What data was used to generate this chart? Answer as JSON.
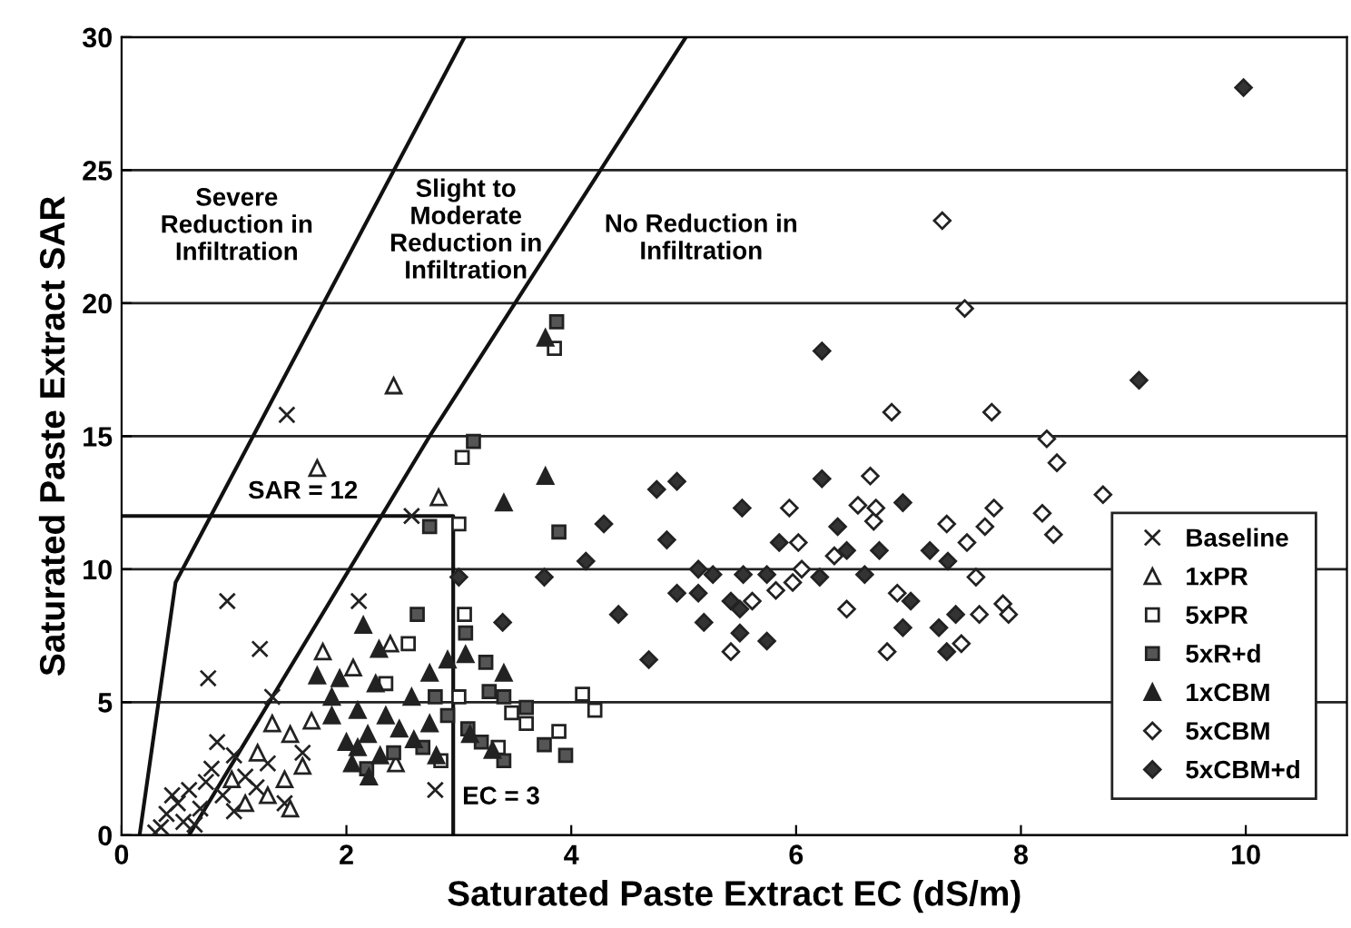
{
  "chart_data": {
    "type": "scatter",
    "xlabel": "Saturated Paste Extract EC (dS/m)",
    "ylabel": "Saturated Paste Extract SAR",
    "xlim": [
      0,
      10.9
    ],
    "ylim": [
      0,
      30
    ],
    "xticks": [
      0,
      2,
      4,
      6,
      8,
      10
    ],
    "yticks": [
      0,
      5,
      10,
      15,
      20,
      25,
      30
    ],
    "grid": "y",
    "legend": "bottom right",
    "annotations": [
      "Severe\nReduction in\nInfiltration",
      "Slight to\nModerate\nReduction in\nInfiltration",
      "No Reduction in\nInfiltration",
      "SAR = 12",
      "EC = 3"
    ],
    "series": [
      {
        "type": "line",
        "color": "#111111",
        "marker": "none",
        "x": [
          0.16,
          0.48,
          3.05
        ],
        "values": [
          0,
          9.5,
          30
        ]
      },
      {
        "type": "line",
        "color": "#111111",
        "marker": "none",
        "x": [
          0.6,
          2.74,
          5.02
        ],
        "values": [
          0,
          15,
          30
        ]
      },
      {
        "type": "line",
        "color": "#111111",
        "marker": "none",
        "x": [
          0,
          2.95,
          2.95
        ],
        "values": [
          12,
          12,
          0
        ]
      },
      {
        "name": "Baseline",
        "color": "#222222",
        "marker": "cross",
        "x": [
          1.47,
          0.94,
          2.11,
          1.23,
          0.77,
          1.34,
          1.45,
          2.79,
          2.58,
          1.61,
          0.35,
          0.4,
          0.5,
          0.55,
          0.6,
          0.7,
          0.75,
          0.8,
          0.9,
          1.0,
          1.1,
          1.2,
          0.45,
          0.65,
          0.85,
          1.0,
          0.3,
          1.3
        ],
        "values": [
          15.8,
          8.8,
          8.8,
          7.0,
          5.9,
          5.2,
          1.2,
          1.7,
          12.0,
          3.1,
          0.3,
          0.8,
          1.2,
          0.5,
          1.7,
          1.0,
          2.0,
          2.5,
          1.5,
          3.0,
          2.2,
          1.8,
          1.5,
          0.4,
          3.5,
          0.9,
          0.1,
          2.7
        ]
      },
      {
        "name": "1xPR",
        "color": "#ffffff",
        "marker": "triangle",
        "x": [
          2.42,
          1.74,
          2.82,
          1.79,
          2.39,
          2.06,
          1.69,
          1.34,
          1.5,
          1.61,
          0.98,
          1.21,
          1.45,
          2.44,
          1.3,
          1.5,
          1.1
        ],
        "values": [
          16.9,
          13.8,
          12.7,
          6.9,
          7.2,
          6.3,
          4.3,
          4.2,
          3.8,
          2.6,
          2.1,
          3.1,
          2.1,
          2.7,
          1.5,
          1.0,
          1.2
        ]
      },
      {
        "name": "5xPR",
        "color": "#ffffff",
        "marker": "square",
        "x": [
          3.85,
          3.03,
          3.0,
          3.05,
          2.55,
          2.35,
          4.1,
          4.21,
          3.89,
          3.47,
          3.35,
          3.0,
          3.6,
          2.84
        ],
        "values": [
          18.3,
          14.2,
          11.7,
          8.3,
          7.2,
          5.7,
          5.3,
          4.7,
          3.9,
          4.6,
          3.3,
          5.2,
          4.2,
          2.8
        ]
      },
      {
        "name": "5xR+d",
        "color": "#555555",
        "marker": "square",
        "x": [
          3.87,
          3.13,
          2.74,
          3.89,
          3.06,
          3.24,
          3.27,
          2.79,
          3.4,
          3.76,
          3.95,
          3.4,
          3.08,
          2.68,
          2.42,
          2.18,
          2.63,
          2.9,
          3.2,
          3.6
        ],
        "values": [
          19.3,
          14.8,
          11.6,
          11.4,
          7.6,
          6.5,
          5.4,
          5.2,
          5.2,
          3.4,
          3.0,
          2.8,
          4.0,
          3.3,
          3.1,
          2.5,
          8.3,
          4.5,
          3.5,
          4.8
        ]
      },
      {
        "name": "1xCBM",
        "color": "#222222",
        "marker": "triangle",
        "x": [
          3.77,
          3.77,
          3.4,
          2.74,
          3.4,
          3.06,
          2.9,
          2.15,
          2.29,
          1.74,
          1.94,
          2.26,
          1.87,
          1.87,
          2.1,
          2.35,
          2.58,
          2.19,
          2.47,
          2.1,
          2.74,
          2.6,
          2.3,
          2.0,
          2.8,
          3.1,
          3.3,
          2.05,
          2.2
        ],
        "values": [
          18.7,
          13.5,
          12.5,
          6.1,
          6.1,
          6.8,
          6.6,
          7.9,
          7.0,
          6.0,
          5.9,
          5.7,
          5.2,
          4.5,
          4.7,
          4.5,
          5.2,
          3.8,
          4.0,
          3.3,
          4.2,
          3.6,
          3.0,
          3.5,
          3.0,
          3.8,
          3.2,
          2.7,
          2.2
        ]
      },
      {
        "name": "5xCBM",
        "color": "#ffffff",
        "marker": "diamond",
        "x": [
          7.3,
          7.5,
          6.85,
          7.74,
          6.66,
          5.94,
          6.02,
          6.55,
          6.69,
          6.05,
          5.97,
          5.82,
          5.61,
          5.42,
          6.45,
          6.9,
          6.81,
          7.34,
          7.52,
          7.68,
          7.76,
          7.6,
          7.63,
          7.47,
          6.71,
          6.34,
          8.23,
          8.32,
          8.73,
          8.19,
          8.29,
          7.84,
          7.89
        ],
        "values": [
          23.1,
          19.8,
          15.9,
          15.9,
          13.5,
          12.3,
          11.0,
          12.4,
          11.8,
          10.0,
          9.5,
          9.2,
          8.8,
          6.9,
          8.5,
          9.1,
          6.9,
          11.7,
          11.0,
          11.6,
          12.3,
          9.7,
          8.3,
          7.2,
          12.3,
          10.5,
          14.9,
          14.0,
          12.8,
          12.1,
          11.3,
          8.7,
          8.3
        ]
      },
      {
        "name": "5xCBM+d",
        "color": "#333333",
        "marker": "diamond",
        "x": [
          9.98,
          9.05,
          6.23,
          6.23,
          4.29,
          4.76,
          4.94,
          4.85,
          5.52,
          5.85,
          6.37,
          5.13,
          5.26,
          5.53,
          5.74,
          4.94,
          5.13,
          5.42,
          5.5,
          5.18,
          5.5,
          5.74,
          6.21,
          6.45,
          6.61,
          6.74,
          6.95,
          7.02,
          6.95,
          7.19,
          7.35,
          7.27,
          7.42,
          7.34,
          4.13,
          3.76,
          3.0,
          3.39,
          4.42,
          4.69
        ],
        "values": [
          28.1,
          17.1,
          18.2,
          13.4,
          11.7,
          13.0,
          13.3,
          11.1,
          12.3,
          11.0,
          11.6,
          10.0,
          9.8,
          9.8,
          9.8,
          9.1,
          9.1,
          8.8,
          8.5,
          8.0,
          7.6,
          7.3,
          9.7,
          10.7,
          9.8,
          10.7,
          12.5,
          8.8,
          7.8,
          10.7,
          10.3,
          7.8,
          8.3,
          6.9,
          10.3,
          9.7,
          9.7,
          8.0,
          8.3,
          6.6
        ]
      }
    ]
  }
}
